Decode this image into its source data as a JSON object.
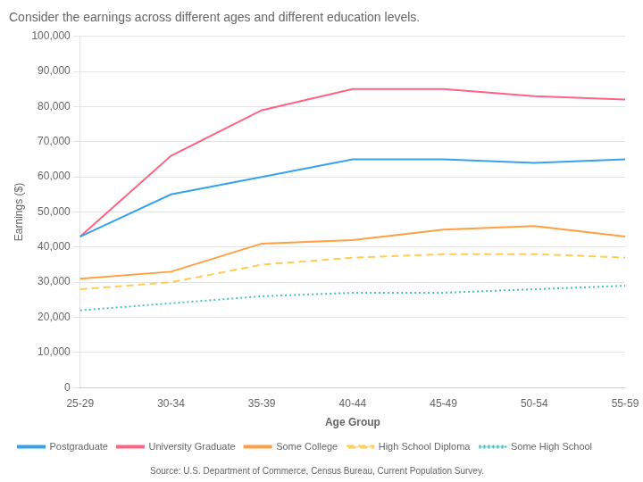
{
  "chart_data": {
    "type": "line",
    "title": "Consider the earnings across different ages and different education levels.",
    "source": "Source: U.S. Department of Commerce, Census Bureau, Current Population Survey.",
    "x_label": "Age Group",
    "y_label": "Earnings ($)",
    "categories": [
      "25-29",
      "30-34",
      "35-39",
      "40-44",
      "45-49",
      "50-54",
      "55-59"
    ],
    "series": [
      {
        "name": "Postgraduate",
        "line_style": "solid",
        "values": [
          43000,
          55000,
          60000,
          65000,
          65000,
          64000,
          65000
        ]
      },
      {
        "name": "University Graduate",
        "line_style": "solid",
        "values": [
          43000,
          66000,
          79000,
          85000,
          85000,
          83000,
          82000
        ]
      },
      {
        "name": "Some College",
        "line_style": "solid",
        "values": [
          31000,
          33000,
          41000,
          42000,
          45000,
          46000,
          43000
        ]
      },
      {
        "name": "High School Diploma",
        "line_style": "dashed",
        "values": [
          28000,
          30000,
          35000,
          37000,
          38000,
          38000,
          37000
        ]
      },
      {
        "name": "Some High School",
        "line_style": "dotted",
        "values": [
          22000,
          24000,
          26000,
          27000,
          27000,
          28000,
          29000
        ]
      }
    ],
    "ylim": [
      0,
      100000
    ],
    "yticks": [
      0,
      {
        "value": 10000,
        "label": "10,000"
      },
      {
        "value": 20000,
        "label": "20,000"
      },
      {
        "value": 30000,
        "label": "30,000"
      },
      {
        "value": 40000,
        "label": "40,000"
      },
      {
        "value": 50000,
        "label": "50,000"
      },
      {
        "value": 60000,
        "label": "60,000"
      },
      {
        "value": 70000,
        "label": "70,000"
      },
      {
        "value": 80000,
        "label": "80,000"
      },
      {
        "value": 90000,
        "label": "90,000"
      },
      {
        "value": 100000,
        "label": "100,000"
      }
    ],
    "grid": "y",
    "legend": "lower left"
  }
}
